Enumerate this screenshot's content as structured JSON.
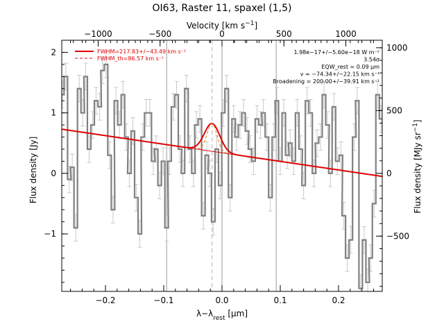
{
  "title": "OI63, Raster 11, spaxel (1,5)",
  "chart_data": {
    "type": "line",
    "title": "OI63, Raster 11, spaxel (1,5)",
    "xlabel": "λ−λrest [μm]",
    "ylabel": "Flux density [Jy]",
    "x2label": "Velocity [km s⁻¹]",
    "y2label": "Flux density [MJy sr⁻¹]",
    "xlim": [
      -0.275,
      0.275
    ],
    "ylim": [
      -1.95,
      2.2
    ],
    "x2lim": [
      -1294,
      1294
    ],
    "y2lim": [
      -940,
      1060
    ],
    "x_ticks": [
      -0.2,
      -0.1,
      0.0,
      0.1,
      0.2
    ],
    "x_tick_labels": [
      "−0.2",
      "−0.1",
      "0.0",
      "0.1",
      "0.2"
    ],
    "y_ticks": [
      -1,
      0,
      1,
      2
    ],
    "y_tick_labels": [
      "−1",
      "0",
      "1",
      "2"
    ],
    "x2_ticks": [
      -1000,
      -500,
      0,
      500,
      1000
    ],
    "x2_tick_labels": [
      "−1000",
      "−500",
      "0",
      "500",
      "1000"
    ],
    "y2_ticks": [
      -500,
      0,
      500,
      1000
    ],
    "y2_tick_labels": [
      "−500",
      "0",
      "500",
      "1000"
    ],
    "vlines": [
      -0.095,
      0.0,
      0.093
    ],
    "rest_line_x": -0.017,
    "spectrum": {
      "name": "data",
      "x": [
        -0.274,
        -0.268,
        -0.262,
        -0.257,
        -0.251,
        -0.245,
        -0.239,
        -0.234,
        -0.228,
        -0.222,
        -0.216,
        -0.21,
        -0.205,
        -0.199,
        -0.193,
        -0.187,
        -0.182,
        -0.176,
        -0.17,
        -0.164,
        -0.159,
        -0.153,
        -0.147,
        -0.141,
        -0.136,
        -0.13,
        -0.124,
        -0.118,
        -0.113,
        -0.107,
        -0.101,
        -0.095,
        -0.09,
        -0.084,
        -0.078,
        -0.072,
        -0.067,
        -0.061,
        -0.055,
        -0.049,
        -0.044,
        -0.038,
        -0.032,
        -0.026,
        -0.021,
        -0.015,
        -0.009,
        -0.003,
        0.002,
        0.008,
        0.014,
        0.02,
        0.025,
        0.031,
        0.037,
        0.043,
        0.048,
        0.054,
        0.06,
        0.066,
        0.071,
        0.077,
        0.083,
        0.089,
        0.094,
        0.1,
        0.106,
        0.112,
        0.117,
        0.123,
        0.129,
        0.135,
        0.14,
        0.146,
        0.152,
        0.158,
        0.163,
        0.169,
        0.175,
        0.181,
        0.186,
        0.192,
        0.198,
        0.204,
        0.209,
        0.215,
        0.221,
        0.227,
        0.232,
        0.238,
        0.244,
        0.25,
        0.255,
        0.261,
        0.267,
        0.273
      ],
      "y": [
        1.3,
        1.6,
        -0.1,
        0.1,
        -0.9,
        1.4,
        1.0,
        1.6,
        0.4,
        0.8,
        1.2,
        1.1,
        1.7,
        1.8,
        0.3,
        -0.6,
        1.2,
        0.8,
        1.3,
        0.6,
        0.0,
        0.7,
        -0.4,
        -1.0,
        0.6,
        1.0,
        1.0,
        0.2,
        0.4,
        -0.2,
        0.2,
        -0.9,
        0.2,
        1.1,
        1.3,
        0.4,
        0.0,
        1.4,
        0.4,
        0.0,
        0.8,
        0.9,
        -0.7,
        0.3,
        0.0,
        -0.8,
        0.4,
        -0.2,
        1.0,
        1.4,
        -0.4,
        0.9,
        0.6,
        0.8,
        1.0,
        0.7,
        0.4,
        0.2,
        0.9,
        0.8,
        1.0,
        0.6,
        -0.4,
        0.6,
        1.2,
        0.2,
        1.0,
        0.3,
        0.5,
        0.2,
        1.0,
        0.4,
        -0.2,
        1.2,
        1.0,
        0.0,
        0.5,
        0.6,
        1.3,
        0.8,
        0.0,
        1.1,
        0.2,
        0.3,
        -0.7,
        -1.4,
        -1.1,
        0.6,
        1.2,
        -1.9,
        -1.1,
        -1.8,
        -1.4,
        -0.5,
        1.3,
        0.9
      ],
      "err": 0.22
    },
    "continuum": {
      "x": [
        -0.275,
        0.275
      ],
      "y": [
        0.73,
        -0.05
      ]
    },
    "gaussian_fit": {
      "center": -0.017,
      "fwhm": 0.031,
      "amplitude": 0.46
    },
    "thermal_profile": {
      "center": -0.017,
      "fwhm": 0.02,
      "amplitude": 0.46
    },
    "legend": [
      {
        "label": "FWHM=217.83+/−43.49 km s⁻¹",
        "style": "solid",
        "color": "#e00000"
      },
      {
        "label": "FWHM_th=86.57 km s⁻¹",
        "style": "dashed",
        "color": "#e00000"
      }
    ],
    "annotations": [
      "1.98e−17+/−5.60e−18 W m⁻²",
      "3.54σ",
      "EQW_rest = 0.09 μm",
      "v = −74.34+/−22.15 km s⁻¹",
      "Broadening = 200.00+/−39.91 km s⁻¹"
    ],
    "colors": {
      "data": "#808080",
      "fit": "#e00000",
      "thermal": "#e07000",
      "vline": "#9a9a9a"
    },
    "grid": false,
    "legend_placement": "top-left"
  }
}
